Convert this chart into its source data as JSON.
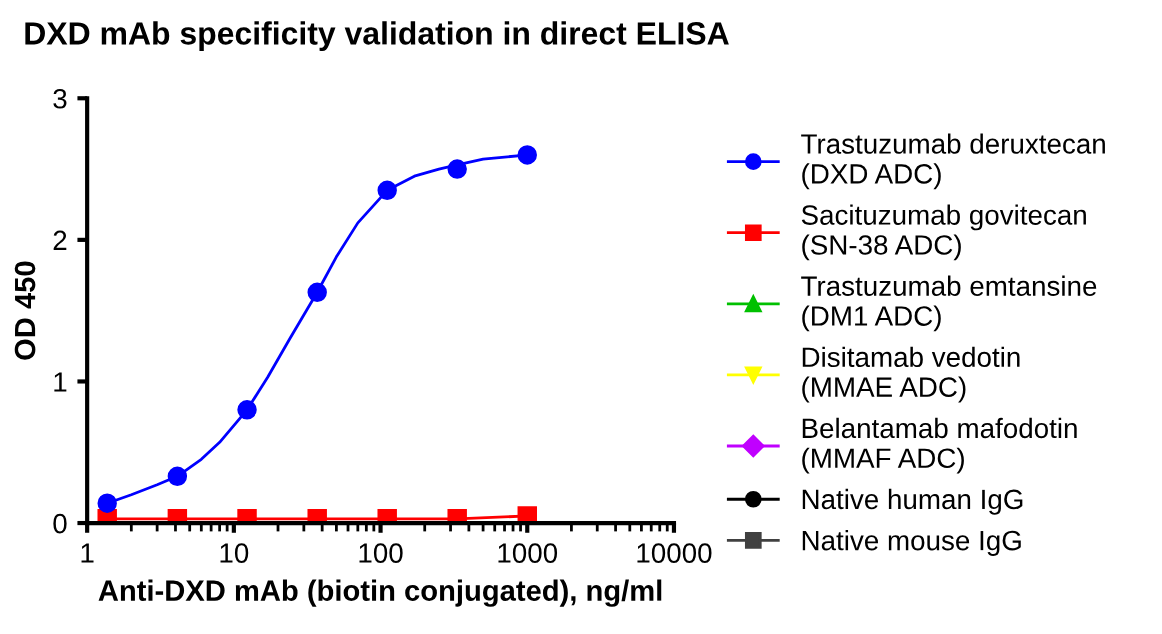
{
  "chart_data": {
    "type": "line",
    "title": "DXD mAb specificity validation in direct ELISA",
    "xlabel": "Anti-DXD mAb (biotin conjugated), ng/ml",
    "ylabel": "OD 450",
    "x": [
      1.37,
      4.12,
      12.3,
      37,
      111,
      333,
      1000
    ],
    "series": [
      {
        "name": "Trastuzumab deruxtecan\n(DXD ADC)",
        "type": "scatter",
        "color": "#0000ff",
        "marker": "circle",
        "values": [
          0.14,
          0.33,
          0.8,
          1.63,
          2.35,
          2.5,
          2.6
        ]
      },
      {
        "name": "Sacituzumab govitecan\n(SN-38 ADC)",
        "color": "#ff0000",
        "marker": "square",
        "values": [
          0.03,
          0.03,
          0.03,
          0.03,
          0.03,
          0.03,
          0.05
        ]
      },
      {
        "name": "Trastuzumab emtansine\n(DM1 ADC)",
        "color": "#00c000",
        "marker": "triangle",
        "values": [
          null,
          null,
          null,
          null,
          null,
          null,
          null
        ]
      },
      {
        "name": "Disitamab vedotin\n(MMAE ADC)",
        "color": "#ffff00",
        "marker": "triangle_down",
        "values": [
          null,
          null,
          null,
          null,
          null,
          null,
          null
        ]
      },
      {
        "name": "Belantamab mafodotin\n(MMAF ADC)",
        "color": "#c000ff",
        "marker": "diamond",
        "values": [
          null,
          null,
          null,
          null,
          null,
          null,
          null
        ]
      },
      {
        "name": "Native human IgG",
        "color": "#000000",
        "marker": "circle",
        "values": [
          null,
          null,
          null,
          null,
          null,
          null,
          null
        ]
      },
      {
        "name": "Native mouse IgG",
        "color": "#404040",
        "marker": "square",
        "values": [
          null,
          null,
          null,
          null,
          null,
          null,
          null
        ]
      },
      {
        "type": "line",
        "color": "#0000ff",
        "marker": "none",
        "x": [
          1.37,
          2,
          3,
          4.12,
          6,
          8,
          12.3,
          17,
          24,
          37,
          50,
          70,
          111,
          170,
          250,
          333,
          500,
          1000
        ],
        "values": [
          0.14,
          0.2,
          0.27,
          0.33,
          0.45,
          0.57,
          0.8,
          1.03,
          1.3,
          1.63,
          1.88,
          2.12,
          2.35,
          2.45,
          2.5,
          2.53,
          2.57,
          2.6
        ]
      }
    ],
    "log": "x",
    "xlim": [
      1,
      10000
    ],
    "xticks": [
      1,
      10,
      100,
      1000,
      10000
    ],
    "ylim": [
      0,
      3
    ],
    "yticks": [
      0,
      1,
      2,
      3
    ],
    "grid": false,
    "legend": "right"
  }
}
